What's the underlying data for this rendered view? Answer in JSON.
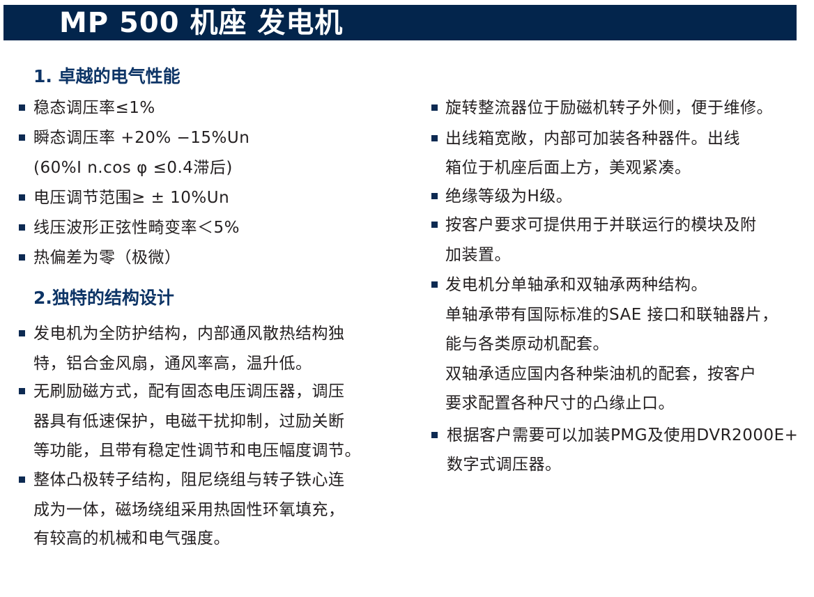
{
  "title": "MP 500 机座 发电机",
  "left": {
    "sections": [
      {
        "heading": "1. 卓越的电气性能",
        "items": [
          {
            "lines": [
              "稳态调压率≤1%"
            ]
          },
          {
            "lines": [
              "瞬态调压率 +20% −15%Un",
              "(60%I n.cos φ ≤0.4滞后)"
            ]
          },
          {
            "lines": [
              "电压调节范围≥ ± 10%Un"
            ]
          },
          {
            "lines": [
              "线压波形正弦性畸变率＜5%"
            ]
          },
          {
            "lines": [
              "热偏差为零（极微）"
            ]
          }
        ]
      },
      {
        "heading": "2.独特的结构设计",
        "items": [
          {
            "lines": [
              "发电机为全防护结构，内部通风散热结构独",
              "特，铝合金风扇，通风率高，温升低。"
            ]
          },
          {
            "lines": [
              "无刷励磁方式，配有固态电压调压器，调压",
              "器具有低速保护，电磁干扰抑制，过励关断",
              "等功能，且带有稳定性调节和电压幅度调节。"
            ]
          },
          {
            "lines": [
              "整体凸极转子结构，阻尼绕组与转子铁心连",
              "成为一体，磁场绕组采用热固性环氧填充，",
              "有较高的机械和电气强度。"
            ]
          }
        ]
      }
    ]
  },
  "right": {
    "items": [
      {
        "lines": [
          "旋转整流器位于励磁机转子外侧，便于维修。"
        ]
      },
      {
        "lines": [
          "出线箱宽敞，内部可加装各种器件。出线",
          "箱位于机座后面上方，美观紧凑。"
        ]
      },
      {
        "lines": [
          "绝缘等级为H级。"
        ]
      },
      {
        "lines": [
          "按客户要求可提供用于并联运行的模块及附",
          "加装置。"
        ]
      },
      {
        "lines": [
          "发电机分单轴承和双轴承两种结构。",
          "单轴承带有国际标准的SAE 接口和联轴器片，",
          "能与各类原动机配套。",
          "双轴承适应国内各种柴油机的配套，按客户",
          "要求配置各种尺寸的凸缘止口。"
        ]
      },
      {
        "lines": [
          "根据客户需要可以加装PMG及使用DVR2000E+",
          "数字式调压器。"
        ]
      }
    ]
  },
  "colors": {
    "title_bar": "#03254c",
    "heading": "#0d3466",
    "bullet": "#0d2a52",
    "text": "#231f20"
  }
}
